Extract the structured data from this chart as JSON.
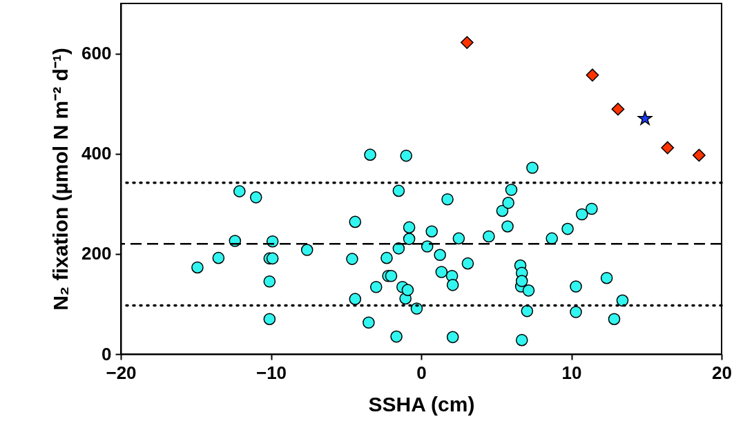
{
  "chart_data": {
    "type": "scatter",
    "xlabel": "SSHA (cm)",
    "ylabel": "N₂ fixation (µmol N m⁻² d⁻¹)",
    "xlim": [
      -20,
      20
    ],
    "xticks": [
      -20,
      -10,
      0,
      10,
      20
    ],
    "ylim": [
      0,
      700
    ],
    "yticks": [
      0,
      200,
      400,
      600
    ],
    "grid": false,
    "ref_lines": [
      {
        "axis": "y",
        "value": 342,
        "line_style": "dotted",
        "color": "#000000"
      },
      {
        "axis": "y",
        "value": 220,
        "line_style": "dashed",
        "color": "#000000"
      },
      {
        "axis": "y",
        "value": 97,
        "line_style": "dotted",
        "color": "#000000"
      }
    ],
    "series": [
      {
        "marker": "circle",
        "color": "#33f5f0",
        "x": [
          -14.9,
          -13.5,
          -12.4,
          -12.1,
          -11.0,
          -10.1,
          -10.1,
          -10.1,
          -9.9,
          -9.9,
          -7.6,
          -4.6,
          -4.4,
          -4.4,
          -3.5,
          -3.4,
          -3.0,
          -2.3,
          -2.2,
          -2.0,
          -1.65,
          -1.5,
          -1.5,
          -1.25,
          -1.05,
          -1.0,
          -0.9,
          -0.8,
          -0.8,
          -0.3,
          0.4,
          0.7,
          1.25,
          1.35,
          1.75,
          2.05,
          2.1,
          2.1,
          2.5,
          3.1,
          4.5,
          5.4,
          5.75,
          5.8,
          6.0,
          6.6,
          6.65,
          6.7,
          6.7,
          6.7,
          7.05,
          7.15,
          7.4,
          8.7,
          9.75,
          10.3,
          10.3,
          10.7,
          11.35,
          12.35,
          12.85,
          13.4
        ],
        "values": [
          173,
          192,
          226,
          325,
          313,
          191,
          145,
          70,
          225,
          191,
          208,
          190,
          264,
          110,
          63,
          398,
          134,
          192,
          156,
          156,
          35,
          326,
          211,
          134,
          111,
          396,
          128,
          253,
          230,
          91,
          215,
          245,
          198,
          164,
          309,
          156,
          138,
          34,
          231,
          181,
          235,
          286,
          255,
          302,
          328,
          177,
          135,
          162,
          146,
          28,
          86,
          127,
          372,
          231,
          250,
          135,
          84,
          279,
          290,
          152,
          70,
          107
        ]
      },
      {
        "marker": "diamond",
        "color": "#ff3300",
        "x": [
          3.05,
          11.4,
          13.1,
          16.4,
          18.5
        ],
        "values": [
          622,
          557,
          489,
          412,
          397
        ]
      },
      {
        "marker": "star",
        "color": "#1a3cff",
        "x": [
          14.9
        ],
        "values": [
          470
        ]
      }
    ]
  }
}
